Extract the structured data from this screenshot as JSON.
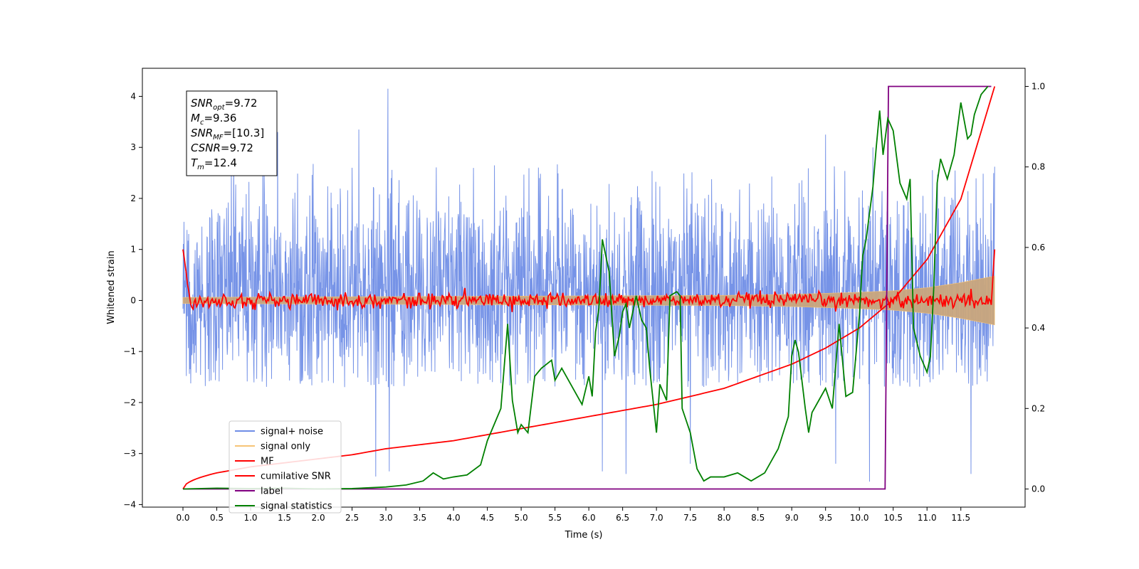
{
  "chart_data": {
    "type": "line",
    "xlabel": "Time (s)",
    "ylabel": "Whitened strain",
    "xlim": [
      -0.6,
      12.45
    ],
    "ylim": [
      -4.05,
      4.55
    ],
    "y2lim": [
      -0.045,
      1.045
    ],
    "x_ticks": [
      0.0,
      0.5,
      1.0,
      1.5,
      2.0,
      2.5,
      3.0,
      3.5,
      4.0,
      4.5,
      5.0,
      5.5,
      6.0,
      6.5,
      7.0,
      7.5,
      8.0,
      8.5,
      9.0,
      9.5,
      10.0,
      10.5,
      11.0,
      11.5
    ],
    "x_tick_labels": [
      "0.0",
      "0.5",
      "1.0",
      "1.5",
      "2.0",
      "2.5",
      "3.0",
      "3.5",
      "4.0",
      "4.5",
      "5.0",
      "5.5",
      "6.0",
      "6.5",
      "7.0",
      "7.5",
      "8.0",
      "8.5",
      "9.0",
      "9.5",
      "10.0",
      "10.5",
      "11.0",
      "11.5"
    ],
    "y_ticks": [
      -4,
      -3,
      -2,
      -1,
      0,
      1,
      2,
      3,
      4
    ],
    "y_tick_labels": [
      "−4",
      "−3",
      "−2",
      "−1",
      "0",
      "1",
      "2",
      "3",
      "4"
    ],
    "y2_ticks": [
      0.0,
      0.2,
      0.4,
      0.6,
      0.8,
      1.0
    ],
    "y2_tick_labels": [
      "0.0",
      "0.2",
      "0.4",
      "0.6",
      "0.8",
      "1.0"
    ],
    "grid": false,
    "legend_position": "lower-left",
    "info_box": {
      "lines": [
        {
          "main": "SNR",
          "sub": "opt",
          "rest": "=9.72"
        },
        {
          "main": "M",
          "sub": "c",
          "rest": "=9.36"
        },
        {
          "main": "SNR",
          "sub": "MF",
          "rest": "=[10.3]"
        },
        {
          "main": "CSNR",
          "sub": "",
          "rest": "=9.72"
        },
        {
          "main": "T",
          "sub": "m",
          "rest": "=12.4"
        }
      ]
    },
    "series": [
      {
        "name": "signal+ noise",
        "axis": "left",
        "color": "#6f8de6",
        "style": "noise band",
        "x_range": [
          0.0,
          12.0
        ],
        "typical_range": [
          -1.7,
          2.7
        ],
        "extreme_peaks": [
          {
            "x": 3.03,
            "y": 4.15
          },
          {
            "x": 0.75,
            "y": 3.3
          },
          {
            "x": 1.4,
            "y": 3.3
          },
          {
            "x": 2.6,
            "y": 3.35
          },
          {
            "x": 9.5,
            "y": 3.25
          },
          {
            "x": 10.2,
            "y": 3.0
          },
          {
            "x": 2.85,
            "y": -3.45
          },
          {
            "x": 3.05,
            "y": -3.35
          },
          {
            "x": 6.2,
            "y": -3.35
          },
          {
            "x": 6.55,
            "y": -3.4
          },
          {
            "x": 10.15,
            "y": -3.55
          },
          {
            "x": 11.65,
            "y": -3.4
          },
          {
            "x": 7.5,
            "y": -3.2
          },
          {
            "x": 9.65,
            "y": -3.2
          }
        ]
      },
      {
        "name": "signal only",
        "axis": "left",
        "color": "#f6c477",
        "style": "chirp",
        "envelope_x": [
          0.0,
          2.0,
          4.0,
          6.0,
          8.0,
          9.0,
          10.0,
          10.5,
          11.0,
          11.5,
          12.0
        ],
        "envelope_amp": [
          0.06,
          0.07,
          0.08,
          0.09,
          0.1,
          0.12,
          0.16,
          0.19,
          0.25,
          0.35,
          0.48
        ]
      },
      {
        "name": "MF",
        "axis": "left",
        "color": "#ff0000",
        "style": "oscillation",
        "x_range": [
          0.0,
          12.0
        ],
        "start_value": 1.0,
        "end_value": 1.0,
        "amplitude": 0.12
      },
      {
        "name": "cumilative SNR",
        "axis": "right",
        "color": "#ff0000",
        "x": [
          0.0,
          0.5,
          1.0,
          1.5,
          2.0,
          2.5,
          3.0,
          3.5,
          4.0,
          4.5,
          5.0,
          5.5,
          6.0,
          6.5,
          7.0,
          7.5,
          8.0,
          8.5,
          9.0,
          9.5,
          10.0,
          10.5,
          11.0,
          11.5,
          12.0
        ],
        "y": [
          0.0,
          0.04,
          0.055,
          0.065,
          0.075,
          0.085,
          0.1,
          0.11,
          0.12,
          0.135,
          0.15,
          0.165,
          0.18,
          0.195,
          0.21,
          0.23,
          0.25,
          0.28,
          0.31,
          0.35,
          0.4,
          0.47,
          0.57,
          0.72,
          1.0
        ]
      },
      {
        "name": "label",
        "axis": "right",
        "color": "#800080",
        "x": [
          0.0,
          10.38,
          10.43,
          11.95
        ],
        "y": [
          0.0,
          0.0,
          1.0,
          1.0
        ]
      },
      {
        "name": "signal statistics",
        "axis": "right",
        "color": "#008000",
        "x": [
          0.0,
          0.5,
          1.0,
          1.5,
          2.0,
          2.5,
          3.0,
          3.3,
          3.55,
          3.7,
          3.85,
          4.0,
          4.2,
          4.4,
          4.5,
          4.65,
          4.7,
          4.8,
          4.87,
          4.95,
          5.0,
          5.1,
          5.2,
          5.3,
          5.45,
          5.5,
          5.6,
          5.8,
          5.9,
          6.0,
          6.05,
          6.1,
          6.15,
          6.2,
          6.3,
          6.38,
          6.45,
          6.5,
          6.55,
          6.6,
          6.7,
          6.78,
          6.85,
          6.9,
          6.95,
          7.0,
          7.05,
          7.1,
          7.15,
          7.2,
          7.3,
          7.35,
          7.38,
          7.42,
          7.5,
          7.6,
          7.7,
          7.8,
          8.0,
          8.2,
          8.4,
          8.6,
          8.8,
          8.95,
          9.0,
          9.05,
          9.1,
          9.2,
          9.25,
          9.3,
          9.4,
          9.5,
          9.6,
          9.7,
          9.8,
          9.9,
          10.0,
          10.05,
          10.1,
          10.2,
          10.25,
          10.3,
          10.35,
          10.42,
          10.5,
          10.6,
          10.7,
          10.75,
          10.8,
          10.9,
          11.0,
          11.05,
          11.1,
          11.15,
          11.2,
          11.3,
          11.4,
          11.5,
          11.6,
          11.65,
          11.7,
          11.8,
          11.85,
          11.9
        ],
        "y": [
          0.0,
          0.002,
          0.001,
          0.002,
          0.0,
          0.001,
          0.005,
          0.01,
          0.02,
          0.04,
          0.025,
          0.03,
          0.035,
          0.06,
          0.12,
          0.18,
          0.2,
          0.41,
          0.22,
          0.14,
          0.16,
          0.14,
          0.28,
          0.3,
          0.32,
          0.27,
          0.3,
          0.24,
          0.21,
          0.28,
          0.23,
          0.39,
          0.45,
          0.62,
          0.54,
          0.33,
          0.38,
          0.44,
          0.46,
          0.4,
          0.48,
          0.42,
          0.4,
          0.3,
          0.22,
          0.14,
          0.26,
          0.24,
          0.22,
          0.48,
          0.49,
          0.48,
          0.2,
          0.18,
          0.14,
          0.05,
          0.02,
          0.03,
          0.03,
          0.04,
          0.02,
          0.04,
          0.1,
          0.18,
          0.33,
          0.37,
          0.34,
          0.2,
          0.14,
          0.19,
          0.22,
          0.25,
          0.2,
          0.41,
          0.23,
          0.24,
          0.43,
          0.58,
          0.62,
          0.75,
          0.85,
          0.94,
          0.83,
          0.92,
          0.89,
          0.76,
          0.72,
          0.77,
          0.4,
          0.33,
          0.29,
          0.33,
          0.5,
          0.76,
          0.82,
          0.77,
          0.83,
          0.96,
          0.87,
          0.88,
          0.93,
          0.98,
          0.99,
          1.0
        ]
      }
    ]
  }
}
